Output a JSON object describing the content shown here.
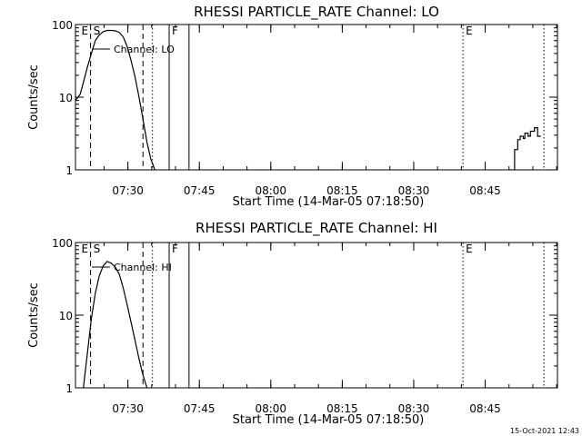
{
  "footer": {
    "timestamp": "15-Oct-2021 12:43"
  },
  "chart_data": [
    {
      "type": "line",
      "title": "RHESSI PARTICLE_RATE Channel: LO",
      "xlabel": "Start Time (14-Mar-05 07:18:50)",
      "ylabel": "Counts/sec",
      "yscale": "log",
      "xlim": [
        0,
        6070
      ],
      "ylim": [
        1,
        100
      ],
      "xticks": [
        {
          "x": 660,
          "label": "07:30"
        },
        {
          "x": 1560,
          "label": "07:45"
        },
        {
          "x": 2460,
          "label": "08:00"
        },
        {
          "x": 3360,
          "label": "08:15"
        },
        {
          "x": 4260,
          "label": "08:30"
        },
        {
          "x": 5160,
          "label": "08:45"
        }
      ],
      "yticks": [
        {
          "y": 1,
          "label": "1"
        },
        {
          "y": 10,
          "label": "10"
        },
        {
          "y": 100,
          "label": "100"
        }
      ],
      "markers": [
        {
          "x": 40,
          "label": "E",
          "style": "none"
        },
        {
          "x": 190,
          "label": "S",
          "style": "dashed"
        },
        {
          "x": 850,
          "label": "",
          "style": "dashed"
        },
        {
          "x": 970,
          "label": "",
          "style": "dotted"
        },
        {
          "x": 1180,
          "label": "F",
          "style": "solid"
        },
        {
          "x": 1430,
          "label": "",
          "style": "solid"
        },
        {
          "x": 4880,
          "label": "E",
          "style": "dotted"
        },
        {
          "x": 5900,
          "label": "",
          "style": "dotted"
        }
      ],
      "legend": {
        "label": "Channel: LO",
        "position": "top-left"
      },
      "series": [
        {
          "x": [
            0,
            60,
            100,
            150,
            200,
            250,
            300,
            350,
            400,
            450,
            500,
            550,
            600,
            650,
            700,
            750,
            800,
            850,
            900,
            950,
            1000
          ],
          "y": [
            9,
            11,
            16,
            26,
            40,
            60,
            72,
            80,
            83,
            83,
            82,
            78,
            68,
            50,
            32,
            19,
            10,
            5,
            2.4,
            1.4,
            1.0
          ]
        },
        {
          "x": [
            5460,
            5530,
            5530,
            5570,
            5570,
            5600,
            5600,
            5640,
            5640,
            5660,
            5660,
            5700,
            5700,
            5730,
            5730,
            5780,
            5780,
            5820,
            5820,
            5860
          ],
          "y": [
            1,
            1,
            1.9,
            1.9,
            2.6,
            2.6,
            2.9,
            2.9,
            2.7,
            2.7,
            3.2,
            3.2,
            2.9,
            2.9,
            3.4,
            3.4,
            3.8,
            3.8,
            2.9,
            2.9
          ]
        }
      ]
    },
    {
      "type": "line",
      "title": "RHESSI PARTICLE_RATE Channel: HI",
      "xlabel": "Start Time (14-Mar-05 07:18:50)",
      "ylabel": "Counts/sec",
      "yscale": "log",
      "xlim": [
        0,
        6070
      ],
      "ylim": [
        1,
        100
      ],
      "xticks": [
        {
          "x": 660,
          "label": "07:30"
        },
        {
          "x": 1560,
          "label": "07:45"
        },
        {
          "x": 2460,
          "label": "08:00"
        },
        {
          "x": 3360,
          "label": "08:15"
        },
        {
          "x": 4260,
          "label": "08:30"
        },
        {
          "x": 5160,
          "label": "08:45"
        }
      ],
      "yticks": [
        {
          "y": 1,
          "label": "1"
        },
        {
          "y": 10,
          "label": "10"
        },
        {
          "y": 100,
          "label": "100"
        }
      ],
      "markers": [
        {
          "x": 40,
          "label": "E",
          "style": "none"
        },
        {
          "x": 190,
          "label": "S",
          "style": "dashed"
        },
        {
          "x": 850,
          "label": "",
          "style": "dashed"
        },
        {
          "x": 970,
          "label": "",
          "style": "dotted"
        },
        {
          "x": 1180,
          "label": "F",
          "style": "solid"
        },
        {
          "x": 1430,
          "label": "",
          "style": "solid"
        },
        {
          "x": 4880,
          "label": "E",
          "style": "dotted"
        },
        {
          "x": 5900,
          "label": "",
          "style": "dotted"
        }
      ],
      "legend": {
        "label": "Channel: HI",
        "position": "top-left"
      },
      "series": [
        {
          "x": [
            100,
            150,
            200,
            250,
            300,
            350,
            400,
            450,
            500,
            550,
            600,
            650,
            700,
            750,
            800,
            850,
            900
          ],
          "y": [
            1.0,
            3,
            9,
            20,
            35,
            48,
            55,
            52,
            46,
            37,
            24,
            14,
            8,
            4.5,
            2.5,
            1.5,
            1.0
          ]
        }
      ]
    }
  ]
}
